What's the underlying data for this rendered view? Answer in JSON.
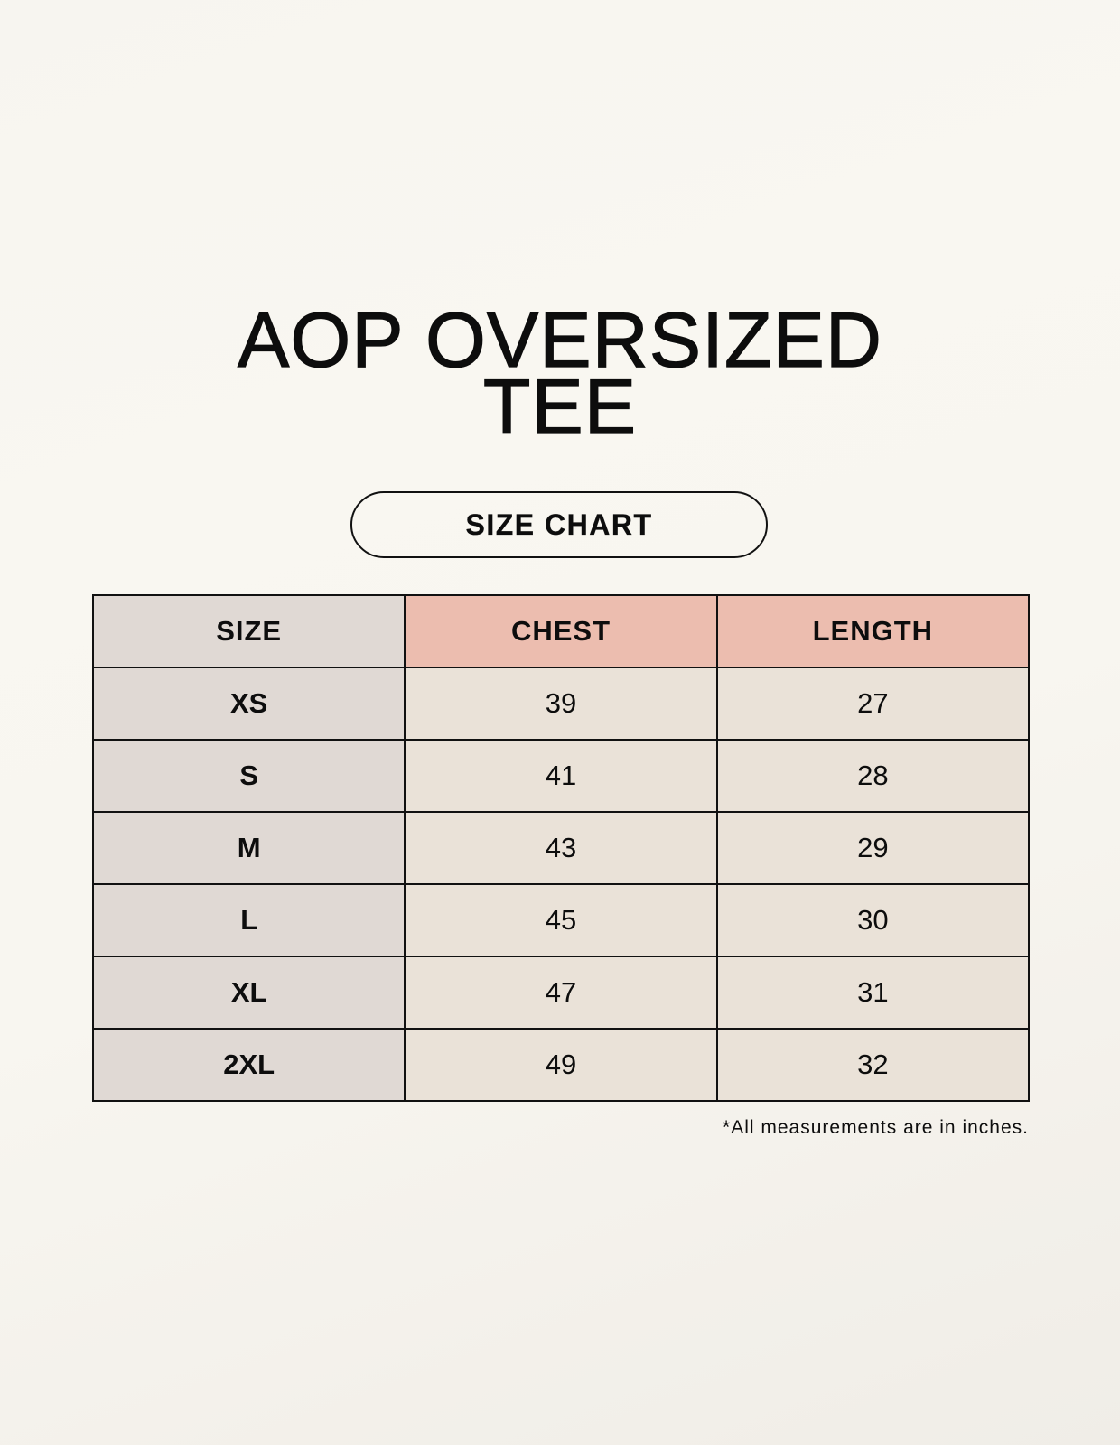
{
  "title_lines": [
    "AOP OVERSIZED",
    "TEE"
  ],
  "subtitle": "SIZE CHART",
  "table": {
    "headers": [
      "SIZE",
      "CHEST",
      "LENGTH"
    ],
    "rows": [
      [
        "XS",
        "39",
        "27"
      ],
      [
        "S",
        "41",
        "28"
      ],
      [
        "M",
        "43",
        "29"
      ],
      [
        "L",
        "45",
        "30"
      ],
      [
        "XL",
        "47",
        "31"
      ],
      [
        "2XL",
        "49",
        "32"
      ]
    ]
  },
  "footnote": "*All measurements are in inches.",
  "colors": {
    "size_column": "#e0d9d4",
    "header_accent": "#ecbdaf",
    "cell": "#eae2d8",
    "background": "#f8f6f0"
  }
}
